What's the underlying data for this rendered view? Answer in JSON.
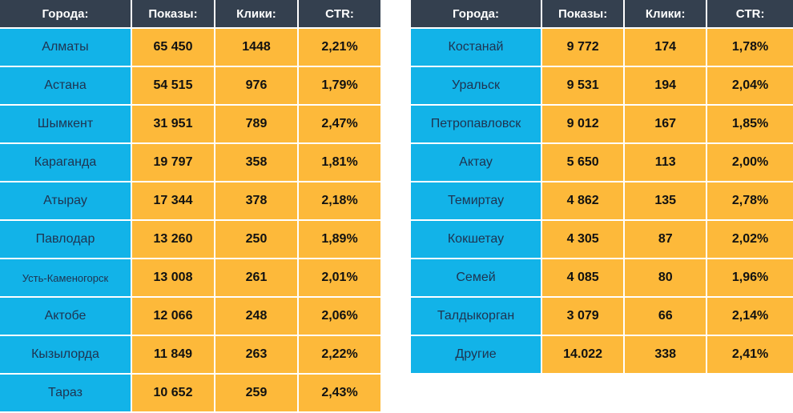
{
  "colors": {
    "header_bg": "#34404f",
    "city_bg": "#12b3e8",
    "value_bg": "#fdb93a"
  },
  "headers": [
    "Города:",
    "Показы:",
    "Клики:",
    "CTR:"
  ],
  "left_table": [
    {
      "city": "Алматы",
      "shows": "65 450",
      "clicks": "1448",
      "ctr": "2,21%"
    },
    {
      "city": "Астана",
      "shows": "54 515",
      "clicks": "976",
      "ctr": "1,79%"
    },
    {
      "city": "Шымкент",
      "shows": "31 951",
      "clicks": "789",
      "ctr": "2,47%"
    },
    {
      "city": "Караганда",
      "shows": "19 797",
      "clicks": "358",
      "ctr": "1,81%"
    },
    {
      "city": "Атырау",
      "shows": "17 344",
      "clicks": "378",
      "ctr": "2,18%"
    },
    {
      "city": "Павлодар",
      "shows": "13 260",
      "clicks": "250",
      "ctr": "1,89%"
    },
    {
      "city": "Усть-Каменогорск",
      "shows": "13 008",
      "clicks": "261",
      "ctr": "2,01%"
    },
    {
      "city": "Актобе",
      "shows": "12 066",
      "clicks": "248",
      "ctr": "2,06%"
    },
    {
      "city": "Кызылорда",
      "shows": "11 849",
      "clicks": "263",
      "ctr": "2,22%"
    },
    {
      "city": "Тараз",
      "shows": "10 652",
      "clicks": "259",
      "ctr": "2,43%"
    }
  ],
  "right_table": [
    {
      "city": "Костанай",
      "shows": "9 772",
      "clicks": "174",
      "ctr": "1,78%"
    },
    {
      "city": "Уральск",
      "shows": "9 531",
      "clicks": "194",
      "ctr": "2,04%"
    },
    {
      "city": "Петропавловск",
      "shows": "9 012",
      "clicks": "167",
      "ctr": "1,85%"
    },
    {
      "city": "Актау",
      "shows": "5 650",
      "clicks": "113",
      "ctr": "2,00%"
    },
    {
      "city": "Темиртау",
      "shows": "4 862",
      "clicks": "135",
      "ctr": "2,78%"
    },
    {
      "city": "Кокшетау",
      "shows": "4 305",
      "clicks": "87",
      "ctr": "2,02%"
    },
    {
      "city": "Семей",
      "shows": "4 085",
      "clicks": "80",
      "ctr": "1,96%"
    },
    {
      "city": "Талдыкорган",
      "shows": "3 079",
      "clicks": "66",
      "ctr": "2,14%"
    },
    {
      "city": "Другие",
      "shows": "14.022",
      "clicks": "338",
      "ctr": "2,41%"
    }
  ]
}
